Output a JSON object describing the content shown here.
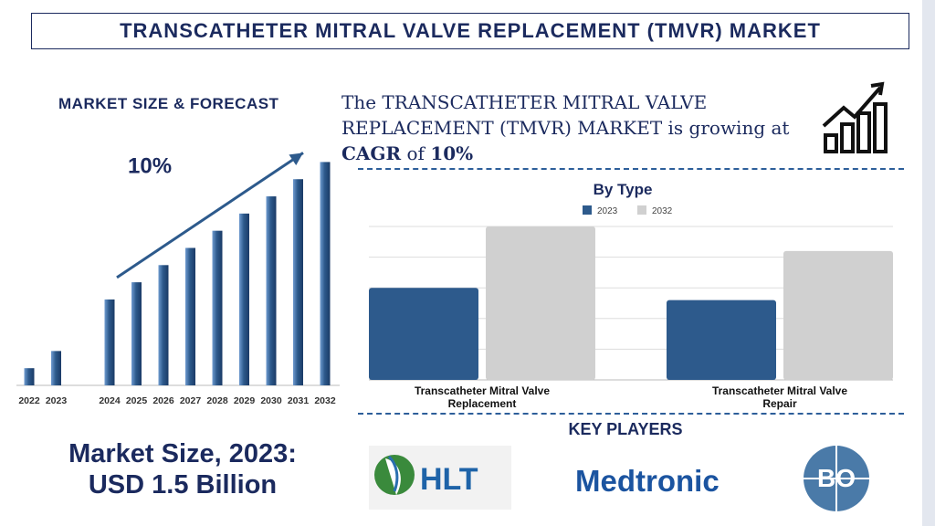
{
  "title": "TRANSCATHETER MITRAL VALVE REPLACEMENT (TMVR) MARKET",
  "forecast_panel": {
    "title": "MARKET SIZE & FORECAST",
    "cagr_label": "10%"
  },
  "headline": {
    "line1": "The TRANSCATHETER MITRAL VALVE",
    "line2": "REPLACEMENT (TMVR) MARKET is growing at",
    "cagr_word": "CAGR",
    "of_word": " of ",
    "cagr_value": "10%"
  },
  "market_size": {
    "line1": "Market Size, 2023:",
    "line2": "USD 1.5 Billion"
  },
  "key_players": {
    "title": "KEY PLAYERS",
    "logos": [
      "HLT",
      "Medtronic",
      "BO"
    ]
  },
  "colors": {
    "navy": "#1b2a5e",
    "bar_blue": "#2d5a8c",
    "grey_bar": "#d0d0d0"
  },
  "chart_data": [
    {
      "type": "bar",
      "title": "",
      "categories": [
        "2022",
        "2023",
        "2024",
        "2025",
        "2026",
        "2027",
        "2028",
        "2029",
        "2030",
        "2031",
        "2032"
      ],
      "values": [
        1.0,
        2.0,
        5.0,
        6.0,
        7.0,
        8.0,
        9.0,
        10.0,
        11.0,
        12.0,
        13.0
      ],
      "ylim": [
        0,
        13.5
      ],
      "gap_after": "2023",
      "trend_arrow": true,
      "grid": false
    },
    {
      "type": "bar",
      "title": "By Type",
      "categories": [
        "Transcatheter Mitral Valve Replacement",
        "Transcatheter Mitral Valve Repair"
      ],
      "series": [
        {
          "name": "2023",
          "values": [
            3.0,
            2.6
          ],
          "color": "#2d5a8c"
        },
        {
          "name": "2032",
          "values": [
            5.0,
            4.2
          ],
          "color": "#d0d0d0"
        }
      ],
      "ylim": [
        0,
        5
      ],
      "grid": true,
      "legend": "top-center"
    }
  ]
}
